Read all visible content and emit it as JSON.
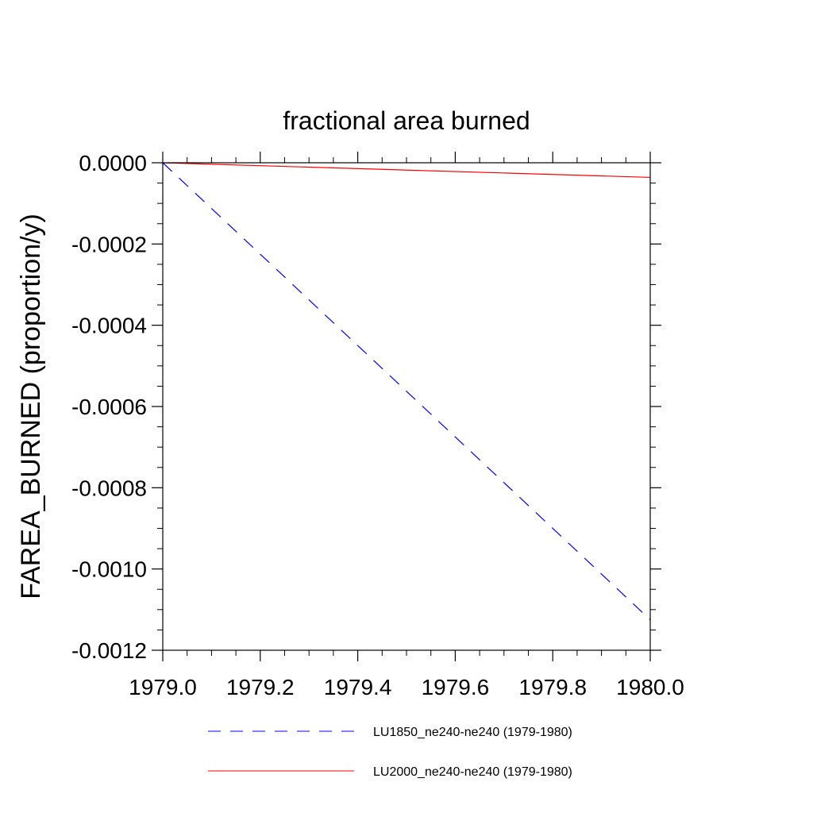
{
  "chart_data": {
    "type": "line",
    "title": "fractional area burned",
    "xlabel": "",
    "ylabel": "FAREA_BURNED  (proportion/y)",
    "xlim": [
      1979.0,
      1980.0
    ],
    "ylim": [
      -0.0012,
      0.0
    ],
    "x_ticks": [
      "1979.0",
      "1979.2",
      "1979.4",
      "1979.6",
      "1979.8",
      "1980.0"
    ],
    "y_ticks": [
      "0.0000",
      "-0.0002",
      "-0.0004",
      "-0.0006",
      "-0.0008",
      "-0.0010",
      "-0.0012"
    ],
    "grid": false,
    "legend": "bottom",
    "series": [
      {
        "name": "LU1850_ne240-ne240 (1979-1980)",
        "color": "#0000ff",
        "dash": "dashed",
        "x": [
          1979.0,
          1980.0
        ],
        "y": [
          0.0,
          -0.001125
        ]
      },
      {
        "name": "LU2000_ne240-ne240 (1979-1980)",
        "color": "#ff0000",
        "dash": "solid",
        "x": [
          1979.0,
          1980.0
        ],
        "y": [
          0.0,
          -3.6e-05
        ]
      }
    ]
  }
}
